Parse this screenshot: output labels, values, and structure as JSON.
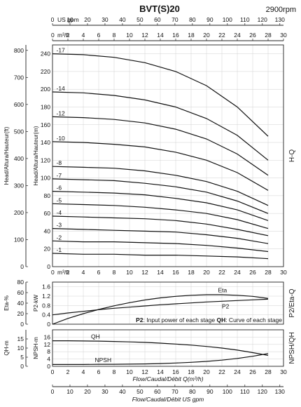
{
  "title": "BVT(S)20",
  "speed": "2900rpm",
  "chart_data": [
    {
      "type": "line",
      "name": "H-Q",
      "side_label": "H-Q",
      "x_range": [
        0,
        30
      ],
      "y_range": [
        0,
        250
      ],
      "y2_range": [
        0,
        800
      ],
      "top_axis_label": "US gpm",
      "top_axis2_label": "m³/h",
      "bottom_axis_label": "m³/h",
      "y_label_m": "Head/Altura/Hauteur(m)",
      "y_label_ft": "Head/Altura/Hauteur(ft)",
      "x_ticks_m3h": [
        "0",
        "2",
        "4",
        "6",
        "8",
        "10",
        "12",
        "14",
        "16",
        "18",
        "20",
        "22",
        "24",
        "26",
        "28",
        "30"
      ],
      "x_ticks_gpm": [
        "0",
        "10",
        "20",
        "30",
        "40",
        "50",
        "60",
        "70",
        "80",
        "90",
        "100",
        "110",
        "120",
        "130"
      ],
      "y_ticks_m": [
        "0",
        "20",
        "40",
        "60",
        "80",
        "100",
        "120",
        "140",
        "160",
        "180",
        "200",
        "220",
        "240"
      ],
      "y_ticks_ft": [
        "0",
        "100",
        "200",
        "300",
        "400",
        "500",
        "600",
        "700",
        "800"
      ],
      "x": [
        0,
        4,
        8,
        12,
        16,
        20,
        24,
        28
      ],
      "series": [
        {
          "name": "-17",
          "values": [
            240,
            239,
            236,
            230,
            220,
            204,
            180,
            147
          ]
        },
        {
          "name": "-14",
          "values": [
            197,
            196,
            193,
            188,
            180,
            167,
            148,
            120
          ]
        },
        {
          "name": "-12",
          "values": [
            169,
            168,
            166,
            162,
            155,
            144,
            127,
            103
          ]
        },
        {
          "name": "-10",
          "values": [
            141,
            140,
            138,
            135,
            129,
            120,
            106,
            86
          ]
        },
        {
          "name": "-8",
          "values": [
            113,
            112,
            111,
            108,
            103,
            96,
            85,
            69
          ]
        },
        {
          "name": "-7",
          "values": [
            99,
            98,
            97,
            94,
            90,
            84,
            74,
            60
          ]
        },
        {
          "name": "-6",
          "values": [
            85,
            84,
            83,
            81,
            77,
            72,
            64,
            52
          ]
        },
        {
          "name": "-5",
          "values": [
            71,
            70,
            69,
            67,
            64,
            60,
            53,
            43
          ]
        },
        {
          "name": "-4",
          "values": [
            57,
            56,
            55,
            54,
            52,
            48,
            42,
            35
          ]
        },
        {
          "name": "-3",
          "values": [
            43,
            42,
            41,
            40,
            39,
            36,
            32,
            26
          ]
        },
        {
          "name": "-2",
          "values": [
            29,
            28,
            28,
            27,
            26,
            24,
            21,
            17
          ]
        },
        {
          "name": "-1",
          "values": [
            15,
            14,
            14,
            13,
            13,
            12,
            11,
            9
          ]
        }
      ]
    },
    {
      "type": "line",
      "name": "P2/Eta",
      "side_label": "P2/Eta-Q",
      "x_range": [
        0,
        30
      ],
      "y_range": [
        0,
        1.8
      ],
      "y2_range": [
        0,
        80
      ],
      "y_label_left": "Eta-%",
      "y_label_right": "P2-kW",
      "y_ticks": [
        "0",
        "0.4",
        "0.8",
        "1.2",
        "1.6"
      ],
      "y2_ticks": [
        "0",
        "20",
        "40",
        "60",
        "80"
      ],
      "footnote_bold1": "P2",
      "footnote_text1": ": Input power of each stage ",
      "footnote_bold2": "QH",
      "footnote_text2": ": Curve of each stage",
      "x": [
        0,
        2,
        4,
        6,
        8,
        10,
        12,
        14,
        16,
        18,
        20,
        22,
        24,
        26,
        28
      ],
      "series": [
        {
          "name": "Eta",
          "values": [
            0,
            11,
            20,
            28,
            35,
            41,
            46,
            50,
            53,
            55,
            56,
            56,
            55,
            53,
            49
          ]
        },
        {
          "name": "P2",
          "values": [
            0.4,
            0.48,
            0.55,
            0.62,
            0.68,
            0.73,
            0.78,
            0.83,
            0.87,
            0.91,
            0.95,
            0.98,
            1.01,
            1.04,
            1.07
          ]
        }
      ]
    },
    {
      "type": "line",
      "name": "QH/NPSH",
      "side_label": "NPSH/QH",
      "x_range": [
        0,
        30
      ],
      "y_range": [
        0,
        20
      ],
      "y_label_left": "QH-m",
      "y_label_right": "NPSH-m",
      "y_ticks": [
        "0",
        "4",
        "8",
        "12",
        "16"
      ],
      "y_ticks_left": [
        "0",
        "5",
        "10",
        "15"
      ],
      "x_ticks_m3h": [
        "0",
        "2",
        "4",
        "6",
        "8",
        "10",
        "12",
        "14",
        "16",
        "18",
        "20",
        "22",
        "24",
        "26",
        "28",
        "30"
      ],
      "x_ticks_gpm": [
        "0",
        "10",
        "20",
        "30",
        "40",
        "50",
        "60",
        "70",
        "80",
        "90",
        "100",
        "110",
        "120",
        "130"
      ],
      "bottom_label_1": "Flow/Caudal/Débit Q(m³/h)",
      "bottom_label_2": "Flow/Caudal/Débit  US gpm",
      "x": [
        0,
        2,
        4,
        6,
        8,
        10,
        12,
        14,
        16,
        18,
        20,
        22,
        24,
        26,
        28
      ],
      "series": [
        {
          "name": "QH",
          "values": [
            14.0,
            14.0,
            13.9,
            13.8,
            13.6,
            13.4,
            13.1,
            12.7,
            12.2,
            11.6,
            10.9,
            10.0,
            8.9,
            7.5,
            6.0
          ]
        },
        {
          "name": "NPSH",
          "values": [
            1.0,
            1.0,
            1.0,
            1.1,
            1.1,
            1.2,
            1.3,
            1.5,
            1.8,
            2.2,
            2.7,
            3.4,
            4.3,
            5.5,
            7.0
          ]
        }
      ]
    }
  ]
}
